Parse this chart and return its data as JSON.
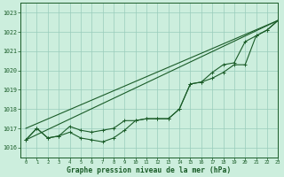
{
  "title": "Graphe pression niveau de la mer (hPa)",
  "background_color": "#cceedd",
  "grid_color": "#99ccbb",
  "line_color": "#1a5c28",
  "ylim": [
    1015.5,
    1023.5
  ],
  "xlim": [
    -0.5,
    23
  ],
  "yticks": [
    1016,
    1017,
    1018,
    1019,
    1020,
    1021,
    1022,
    1023
  ],
  "xticks": [
    0,
    1,
    2,
    3,
    4,
    5,
    6,
    7,
    8,
    9,
    10,
    11,
    12,
    13,
    14,
    15,
    16,
    17,
    18,
    19,
    20,
    21,
    22,
    23
  ],
  "series1": [
    1016.4,
    1017.0,
    1016.5,
    1016.6,
    1016.8,
    1016.5,
    1016.4,
    1016.3,
    1016.5,
    1016.9,
    1017.4,
    1017.5,
    1017.5,
    1017.5,
    1018.0,
    1019.3,
    1019.4,
    1019.6,
    1019.9,
    1020.3,
    1020.3,
    1021.8,
    1022.1,
    1022.6
  ],
  "series2": [
    1016.4,
    1017.0,
    1016.5,
    1016.6,
    1017.1,
    1016.9,
    1016.8,
    1016.9,
    1017.0,
    1017.4,
    1017.4,
    1017.5,
    1017.5,
    1017.5,
    1018.0,
    1019.3,
    1019.4,
    1019.9,
    1020.3,
    1020.4,
    1021.5,
    1021.8,
    1022.1,
    1022.6
  ],
  "line1_x": [
    0,
    23
  ],
  "line1_y": [
    1016.4,
    1022.6
  ],
  "line2_x": [
    0,
    23
  ],
  "line2_y": [
    1017.0,
    1022.6
  ],
  "xlabel_fontsize": 5.5,
  "ylabel_fontsize": 5.5,
  "title_fontsize": 5.8,
  "lw": 0.8
}
